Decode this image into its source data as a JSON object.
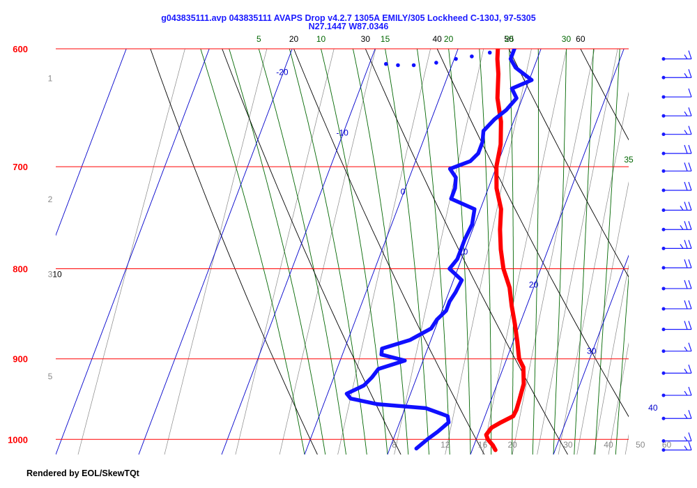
{
  "header": {
    "title": "g043835111.avp 043835111 AVAPS Drop v4.2.7 1305A EMILY/305 Lockheed C-130J, 97-5305",
    "subtitle": "N27.1447 W87.0346"
  },
  "footer": "Rendered by EOL/SkewTQt",
  "colors": {
    "isobar": "#ff0000",
    "isotherm": "#0000cc",
    "dry_adiabat": "#000000",
    "moist_adiabat": "#006600",
    "mixing_ratio": "#888888",
    "temperature": "#ff0000",
    "dewpoint": "#1010ff",
    "wind_barb": "#1a1aff"
  },
  "chart_data": {
    "type": "skew-t",
    "pressure_axis": {
      "unit": "hPa",
      "range": [
        1020,
        600
      ],
      "ticks": [
        600,
        700,
        800,
        900,
        1000
      ],
      "tick_labels": [
        "600",
        "700",
        "800",
        "900",
        "1000"
      ],
      "scale": "log"
    },
    "height_labels": [
      {
        "label": "1",
        "p": 623
      },
      {
        "label": "2",
        "p": 730
      },
      {
        "label": "3",
        "p": 805
      },
      {
        "label": "5",
        "p": 920
      }
    ],
    "isotherm_labels": [
      {
        "label": "-20",
        "t": -20,
        "p": 621
      },
      {
        "label": "-10",
        "t": -10,
        "p": 672
      },
      {
        "label": "0",
        "t": 0,
        "p": 726
      },
      {
        "label": "10",
        "t": 10,
        "p": 785
      },
      {
        "label": "20",
        "t": 20,
        "p": 820
      },
      {
        "label": "30",
        "t": 30,
        "p": 894
      },
      {
        "label": "40",
        "t": 40,
        "p": 963
      }
    ],
    "dry_adiabat_labels": [
      "20",
      "30",
      "40",
      "50",
      "60",
      "10"
    ],
    "moist_adiabat_labels": [
      "5",
      "10",
      "15",
      "20",
      "25",
      "30",
      "35"
    ],
    "mixing_ratio_labels": [
      "8",
      "12",
      "16",
      "20",
      "30",
      "40",
      "50",
      "60"
    ],
    "temperature_profile": [
      [
        1014,
        22.8
      ],
      [
        1008,
        22.3
      ],
      [
        1000,
        21.4
      ],
      [
        994,
        21.0
      ],
      [
        985,
        21.3
      ],
      [
        978,
        22.2
      ],
      [
        970,
        23.4
      ],
      [
        962,
        23.5
      ],
      [
        950,
        23.4
      ],
      [
        930,
        23.2
      ],
      [
        910,
        22.4
      ],
      [
        900,
        21.5
      ],
      [
        880,
        20.5
      ],
      [
        860,
        19.4
      ],
      [
        840,
        18.2
      ],
      [
        820,
        17.1
      ],
      [
        800,
        15.5
      ],
      [
        780,
        14.3
      ],
      [
        760,
        13.3
      ],
      [
        740,
        12.5
      ],
      [
        720,
        11.0
      ],
      [
        700,
        10.0
      ],
      [
        680,
        9.5
      ],
      [
        660,
        8.5
      ],
      [
        640,
        7.0
      ],
      [
        620,
        6.0
      ],
      [
        608,
        5.2
      ],
      [
        600,
        4.8
      ]
    ],
    "dewpoint_profile": [
      [
        1012,
        13.2
      ],
      [
        1000,
        14.1
      ],
      [
        990,
        15.0
      ],
      [
        978,
        15.9
      ],
      [
        970,
        15.5
      ],
      [
        960,
        12.5
      ],
      [
        955,
        6.5
      ],
      [
        948,
        3.0
      ],
      [
        942,
        2.3
      ],
      [
        932,
        4.0
      ],
      [
        922,
        4.6
      ],
      [
        912,
        5.0
      ],
      [
        902,
        7.8
      ],
      [
        895,
        4.7
      ],
      [
        888,
        4.5
      ],
      [
        878,
        7.5
      ],
      [
        865,
        9.5
      ],
      [
        855,
        9.8
      ],
      [
        845,
        10.5
      ],
      [
        835,
        10.5
      ],
      [
        825,
        10.8
      ],
      [
        812,
        11.0
      ],
      [
        800,
        9.0
      ],
      [
        790,
        9.5
      ],
      [
        780,
        9.5
      ],
      [
        770,
        9.5
      ],
      [
        755,
        9.7
      ],
      [
        740,
        9.3
      ],
      [
        730,
        6.0
      ],
      [
        720,
        6.0
      ],
      [
        710,
        5.6
      ],
      [
        702,
        4.5
      ],
      [
        695,
        6.6
      ],
      [
        688,
        7.2
      ],
      [
        678,
        7.2
      ],
      [
        668,
        6.8
      ],
      [
        658,
        7.6
      ],
      [
        650,
        8.6
      ],
      [
        640,
        9.3
      ],
      [
        632,
        8.3
      ],
      [
        625,
        10.3
      ],
      [
        615,
        7.8
      ],
      [
        608,
        6.8
      ],
      [
        600,
        6.8
      ]
    ],
    "dewpoint_gap_segment": [
      [
        612,
        -8.0
      ],
      [
        613,
        -6.5
      ],
      [
        613,
        -4.6
      ],
      [
        611,
        -2.0
      ],
      [
        608,
        0.2
      ],
      [
        606,
        2.0
      ],
      [
        603,
        4.0
      ]
    ],
    "wind_barbs": [
      {
        "p": 608,
        "flags": [
          10,
          5
        ]
      },
      {
        "p": 623,
        "flags": [
          10,
          5
        ]
      },
      {
        "p": 639,
        "flags": [
          10
        ]
      },
      {
        "p": 655,
        "flags": [
          10,
          5
        ]
      },
      {
        "p": 671,
        "flags": [
          10,
          5
        ]
      },
      {
        "p": 688,
        "flags": [
          10,
          10
        ]
      },
      {
        "p": 704,
        "flags": [
          10,
          10
        ]
      },
      {
        "p": 722,
        "flags": [
          10,
          10
        ]
      },
      {
        "p": 741,
        "flags": [
          10,
          10,
          5
        ]
      },
      {
        "p": 760,
        "flags": [
          10,
          10,
          5
        ]
      },
      {
        "p": 779,
        "flags": [
          10,
          10,
          5
        ]
      },
      {
        "p": 799,
        "flags": [
          10,
          10
        ]
      },
      {
        "p": 821,
        "flags": [
          10,
          10
        ]
      },
      {
        "p": 843,
        "flags": [
          10,
          10
        ]
      },
      {
        "p": 866,
        "flags": [
          10,
          10
        ]
      },
      {
        "p": 891,
        "flags": [
          10,
          5
        ]
      },
      {
        "p": 917,
        "flags": [
          10,
          5
        ]
      },
      {
        "p": 944,
        "flags": [
          10,
          5
        ]
      },
      {
        "p": 973,
        "flags": [
          10,
          5
        ]
      },
      {
        "p": 1002,
        "flags": [
          10,
          5
        ]
      },
      {
        "p": 1014,
        "flags": [
          10,
          5
        ]
      }
    ]
  }
}
